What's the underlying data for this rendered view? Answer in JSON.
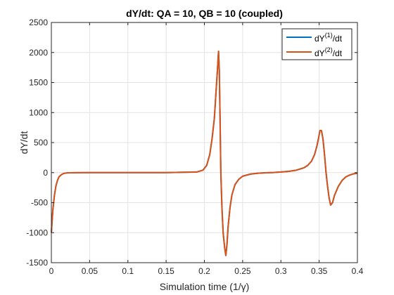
{
  "chart_data": {
    "type": "line",
    "title": "dY/dt: QA = 10, QB = 10 (coupled)",
    "xlabel": "Simulation time (1/γ)",
    "ylabel": "dY/dt",
    "xlim": [
      0,
      0.4
    ],
    "ylim": [
      -1500,
      2500
    ],
    "xticks": [
      "0",
      "0.05",
      "0.1",
      "0.15",
      "0.2",
      "0.25",
      "0.3",
      "0.35",
      "0.4"
    ],
    "yticks": [
      "-1500",
      "-1000",
      "-500",
      "0",
      "500",
      "1000",
      "1500",
      "2000",
      "2500"
    ],
    "grid": true,
    "legend_position": "top-right",
    "series": [
      {
        "name_base": "dY",
        "name_sup": "(1)",
        "name_tail": "/dt",
        "color": "#0072BD",
        "x": [
          0,
          0.001,
          0.002,
          0.004,
          0.006,
          0.008,
          0.01,
          0.013,
          0.016,
          0.02,
          0.03,
          0.05,
          0.1,
          0.15,
          0.19,
          0.198,
          0.203,
          0.207,
          0.21,
          0.213,
          0.215,
          0.217,
          0.2185,
          0.2195,
          0.2205,
          0.2215,
          0.223,
          0.2245,
          0.2265,
          0.228,
          0.2295,
          0.231,
          0.2335,
          0.236,
          0.24,
          0.245,
          0.25,
          0.26,
          0.27,
          0.28,
          0.29,
          0.3,
          0.31,
          0.32,
          0.33,
          0.335,
          0.34,
          0.344,
          0.347,
          0.349,
          0.351,
          0.353,
          0.355,
          0.357,
          0.359,
          0.361,
          0.363,
          0.365,
          0.3675,
          0.37,
          0.375,
          0.38,
          0.385,
          0.39,
          0.395,
          0.4
        ],
        "y": [
          -1000,
          -800,
          -620,
          -380,
          -220,
          -130,
          -70,
          -35,
          -15,
          -5,
          -1,
          0,
          0,
          0,
          10,
          40,
          120,
          300,
          560,
          900,
          1300,
          1700,
          2020,
          1700,
          900,
          0,
          -600,
          -1000,
          -1250,
          -1380,
          -1200,
          -900,
          -580,
          -370,
          -200,
          -110,
          -60,
          -25,
          -10,
          -3,
          2,
          10,
          20,
          40,
          80,
          120,
          190,
          300,
          440,
          560,
          700,
          700,
          560,
          300,
          0,
          -230,
          -420,
          -540,
          -500,
          -380,
          -230,
          -130,
          -70,
          -40,
          -20,
          -10
        ]
      },
      {
        "name_base": "dY",
        "name_sup": "(2)",
        "name_tail": "/dt",
        "color": "#D95319",
        "x": [
          0,
          0.001,
          0.002,
          0.004,
          0.006,
          0.008,
          0.01,
          0.013,
          0.016,
          0.02,
          0.03,
          0.05,
          0.1,
          0.15,
          0.19,
          0.198,
          0.203,
          0.207,
          0.21,
          0.213,
          0.215,
          0.217,
          0.2185,
          0.2195,
          0.2205,
          0.2215,
          0.223,
          0.2245,
          0.2265,
          0.228,
          0.2295,
          0.231,
          0.2335,
          0.236,
          0.24,
          0.245,
          0.25,
          0.26,
          0.27,
          0.28,
          0.29,
          0.3,
          0.31,
          0.32,
          0.33,
          0.335,
          0.34,
          0.344,
          0.347,
          0.349,
          0.351,
          0.353,
          0.355,
          0.357,
          0.359,
          0.361,
          0.363,
          0.365,
          0.3675,
          0.37,
          0.375,
          0.38,
          0.385,
          0.39,
          0.395,
          0.4
        ],
        "y": [
          -1000,
          -800,
          -620,
          -380,
          -220,
          -130,
          -70,
          -35,
          -15,
          -5,
          -1,
          0,
          0,
          0,
          10,
          40,
          120,
          300,
          560,
          900,
          1300,
          1700,
          2020,
          1700,
          900,
          0,
          -600,
          -1000,
          -1250,
          -1380,
          -1200,
          -900,
          -580,
          -370,
          -200,
          -110,
          -60,
          -25,
          -10,
          -3,
          2,
          10,
          20,
          40,
          80,
          120,
          190,
          300,
          440,
          560,
          700,
          700,
          560,
          300,
          0,
          -230,
          -420,
          -540,
          -500,
          -380,
          -230,
          -130,
          -70,
          -40,
          -20,
          -10
        ]
      }
    ]
  }
}
